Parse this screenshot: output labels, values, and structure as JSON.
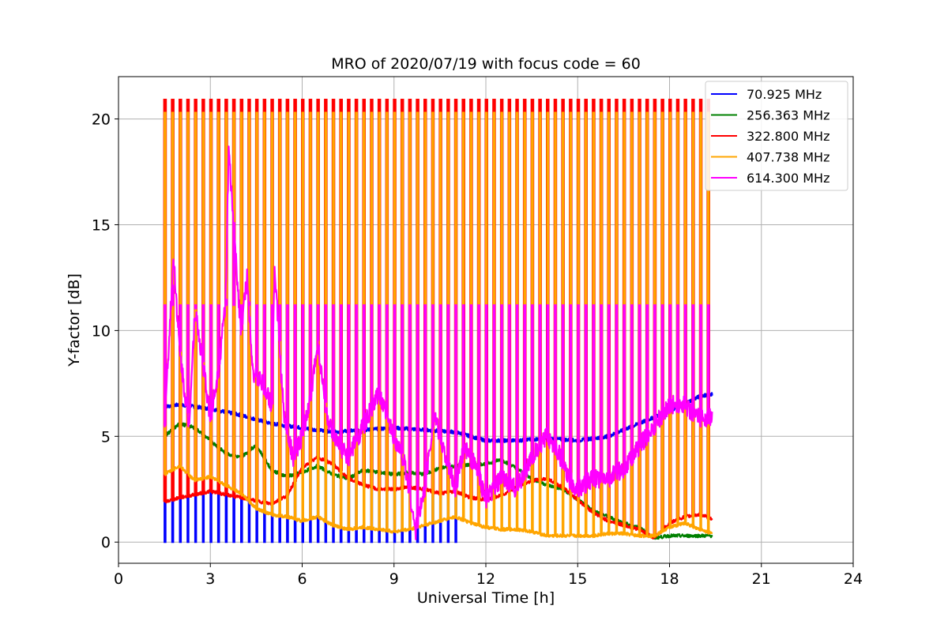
{
  "chart_data": {
    "type": "line",
    "title": "MRO of 2020/07/19 with focus code = 60",
    "xlabel": "Universal Time [h]",
    "ylabel": "Y-factor [dB]",
    "xlim": [
      0,
      24
    ],
    "ylim": [
      -1,
      22
    ],
    "xticks": [
      0,
      3,
      6,
      9,
      12,
      15,
      18,
      21,
      24
    ],
    "yticks": [
      0,
      5,
      10,
      15,
      20
    ],
    "grid": true,
    "legend_position": "top-right",
    "sweep": {
      "start_h": 1.5,
      "end_h": 19.4,
      "period_h": 0.25
    },
    "series": [
      {
        "name": "70.925 MHz",
        "legend_label": " 70.925 MHz",
        "color": "#0000ff",
        "baseline": [
          [
            1.5,
            6.4
          ],
          [
            2,
            6.5
          ],
          [
            3,
            6.3
          ],
          [
            4,
            6.0
          ],
          [
            5,
            5.6
          ],
          [
            6,
            5.4
          ],
          [
            7,
            5.2
          ],
          [
            8,
            5.3
          ],
          [
            9,
            5.4
          ],
          [
            10,
            5.3
          ],
          [
            11,
            5.2
          ],
          [
            12,
            4.8
          ],
          [
            13,
            4.8
          ],
          [
            14,
            4.9
          ],
          [
            15,
            4.8
          ],
          [
            16,
            5.0
          ],
          [
            17,
            5.6
          ],
          [
            18,
            6.2
          ],
          [
            19,
            6.9
          ],
          [
            19.4,
            7.0
          ]
        ],
        "spike_to": 0.0,
        "spike_until_h": 11.0
      },
      {
        "name": "256.363 MHz",
        "legend_label": "256.363 MHz",
        "color": "#008000",
        "baseline": [
          [
            1.5,
            5.0
          ],
          [
            2,
            5.6
          ],
          [
            2.5,
            5.4
          ],
          [
            3,
            4.8
          ],
          [
            3.5,
            4.2
          ],
          [
            4,
            4.0
          ],
          [
            4.5,
            4.6
          ],
          [
            5,
            3.4
          ],
          [
            5.5,
            3.1
          ],
          [
            6,
            3.3
          ],
          [
            6.5,
            3.6
          ],
          [
            7,
            3.2
          ],
          [
            7.5,
            3.0
          ],
          [
            8,
            3.4
          ],
          [
            8.5,
            3.3
          ],
          [
            9,
            3.2
          ],
          [
            9.5,
            3.3
          ],
          [
            10,
            3.2
          ],
          [
            10.5,
            3.5
          ],
          [
            11,
            3.6
          ],
          [
            12,
            3.7
          ],
          [
            12.5,
            3.9
          ],
          [
            13,
            3.5
          ],
          [
            13.5,
            3.0
          ],
          [
            14,
            2.7
          ],
          [
            14.5,
            2.5
          ],
          [
            15,
            2.0
          ],
          [
            15.5,
            1.5
          ],
          [
            16,
            1.2
          ],
          [
            16.5,
            0.9
          ],
          [
            17,
            0.7
          ],
          [
            17.5,
            0.2
          ],
          [
            18,
            0.3
          ],
          [
            19,
            0.3
          ],
          [
            19.4,
            0.3
          ]
        ],
        "spike_to": null,
        "spike_until_h": 0
      },
      {
        "name": "322.800 MHz",
        "legend_label": "322.800 MHz",
        "color": "#ff0000",
        "baseline": [
          [
            1.5,
            1.9
          ],
          [
            2,
            2.1
          ],
          [
            3,
            2.4
          ],
          [
            4,
            2.1
          ],
          [
            5,
            1.8
          ],
          [
            5.5,
            2.2
          ],
          [
            6,
            3.5
          ],
          [
            6.5,
            4.0
          ],
          [
            7,
            3.7
          ],
          [
            7.5,
            3.0
          ],
          [
            8,
            2.7
          ],
          [
            8.5,
            2.5
          ],
          [
            9,
            2.5
          ],
          [
            9.5,
            2.6
          ],
          [
            10,
            2.5
          ],
          [
            10.5,
            2.3
          ],
          [
            11,
            2.4
          ],
          [
            11.5,
            2.1
          ],
          [
            12,
            2.0
          ],
          [
            12.5,
            2.2
          ],
          [
            13,
            2.6
          ],
          [
            13.5,
            2.9
          ],
          [
            14,
            3.0
          ],
          [
            14.5,
            2.6
          ],
          [
            15,
            2.0
          ],
          [
            15.5,
            1.4
          ],
          [
            16,
            1.0
          ],
          [
            16.5,
            0.8
          ],
          [
            17,
            0.6
          ],
          [
            17.5,
            0.2
          ],
          [
            18,
            0.9
          ],
          [
            18.5,
            1.2
          ],
          [
            19,
            1.3
          ],
          [
            19.4,
            1.1
          ]
        ],
        "spike_to": 20.9,
        "spike_until_h": 19.4
      },
      {
        "name": "407.738 MHz",
        "legend_label": "407.738 MHz",
        "color": "#ffa500",
        "baseline": [
          [
            1.5,
            3.2
          ],
          [
            2,
            3.6
          ],
          [
            2.5,
            2.9
          ],
          [
            3,
            3.1
          ],
          [
            3.5,
            2.7
          ],
          [
            4,
            2.3
          ],
          [
            4.5,
            1.6
          ],
          [
            5,
            1.3
          ],
          [
            5.5,
            1.2
          ],
          [
            6,
            1.0
          ],
          [
            6.5,
            1.2
          ],
          [
            7,
            0.8
          ],
          [
            7.5,
            0.6
          ],
          [
            8,
            0.7
          ],
          [
            8.5,
            0.6
          ],
          [
            9,
            0.5
          ],
          [
            9.5,
            0.6
          ],
          [
            10,
            0.8
          ],
          [
            10.5,
            1.0
          ],
          [
            11,
            1.2
          ],
          [
            11.5,
            0.9
          ],
          [
            12,
            0.7
          ],
          [
            12.5,
            0.6
          ],
          [
            13,
            0.6
          ],
          [
            13.5,
            0.5
          ],
          [
            14,
            0.3
          ],
          [
            14.5,
            0.3
          ],
          [
            15,
            0.3
          ],
          [
            15.5,
            0.3
          ],
          [
            16,
            0.4
          ],
          [
            16.5,
            0.4
          ],
          [
            17,
            0.3
          ],
          [
            17.5,
            0.3
          ],
          [
            18,
            0.7
          ],
          [
            18.5,
            0.9
          ],
          [
            19,
            0.6
          ],
          [
            19.4,
            0.4
          ]
        ],
        "spike_to": 20.3,
        "spike_until_h": 19.4
      },
      {
        "name": "614.300 MHz",
        "legend_label": "614.300 MHz",
        "color": "#ff00ff",
        "baseline": [
          [
            1.5,
            5.5
          ],
          [
            1.8,
            13.5
          ],
          [
            2,
            9.0
          ],
          [
            2.3,
            5.5
          ],
          [
            2.5,
            11.0
          ],
          [
            2.8,
            8.0
          ],
          [
            3,
            5.8
          ],
          [
            3.3,
            8.5
          ],
          [
            3.5,
            11.5
          ],
          [
            3.6,
            18.5
          ],
          [
            3.8,
            14.0
          ],
          [
            4,
            10.0
          ],
          [
            4.2,
            12.5
          ],
          [
            4.4,
            8.0
          ],
          [
            4.7,
            7.5
          ],
          [
            5,
            6.5
          ],
          [
            5.1,
            13.0
          ],
          [
            5.4,
            6.0
          ],
          [
            5.7,
            4.0
          ],
          [
            6,
            5.0
          ],
          [
            6.3,
            7.0
          ],
          [
            6.5,
            9.5
          ],
          [
            6.8,
            6.0
          ],
          [
            7,
            5.0
          ],
          [
            7.5,
            4.0
          ],
          [
            8,
            5.5
          ],
          [
            8.5,
            7.0
          ],
          [
            9,
            5.0
          ],
          [
            9.3,
            4.0
          ],
          [
            9.5,
            2.5
          ],
          [
            9.7,
            0.5
          ],
          [
            10,
            2.5
          ],
          [
            10.3,
            6.0
          ],
          [
            10.7,
            4.0
          ],
          [
            11,
            2.5
          ],
          [
            11.3,
            4.5
          ],
          [
            11.7,
            3.5
          ],
          [
            12,
            2.0
          ],
          [
            12.5,
            3.0
          ],
          [
            13,
            2.5
          ],
          [
            13.5,
            4.0
          ],
          [
            14,
            5.0
          ],
          [
            14.3,
            4.5
          ],
          [
            14.7,
            3.0
          ],
          [
            15,
            2.5
          ],
          [
            15.5,
            3.0
          ],
          [
            16,
            3.0
          ],
          [
            16.5,
            3.5
          ],
          [
            17,
            4.5
          ],
          [
            17.5,
            5.5
          ],
          [
            18,
            6.5
          ],
          [
            18.5,
            6.5
          ],
          [
            19,
            5.8
          ],
          [
            19.4,
            6.0
          ]
        ],
        "spike_to": 11.2,
        "spike_until_h": 19.4
      }
    ]
  }
}
